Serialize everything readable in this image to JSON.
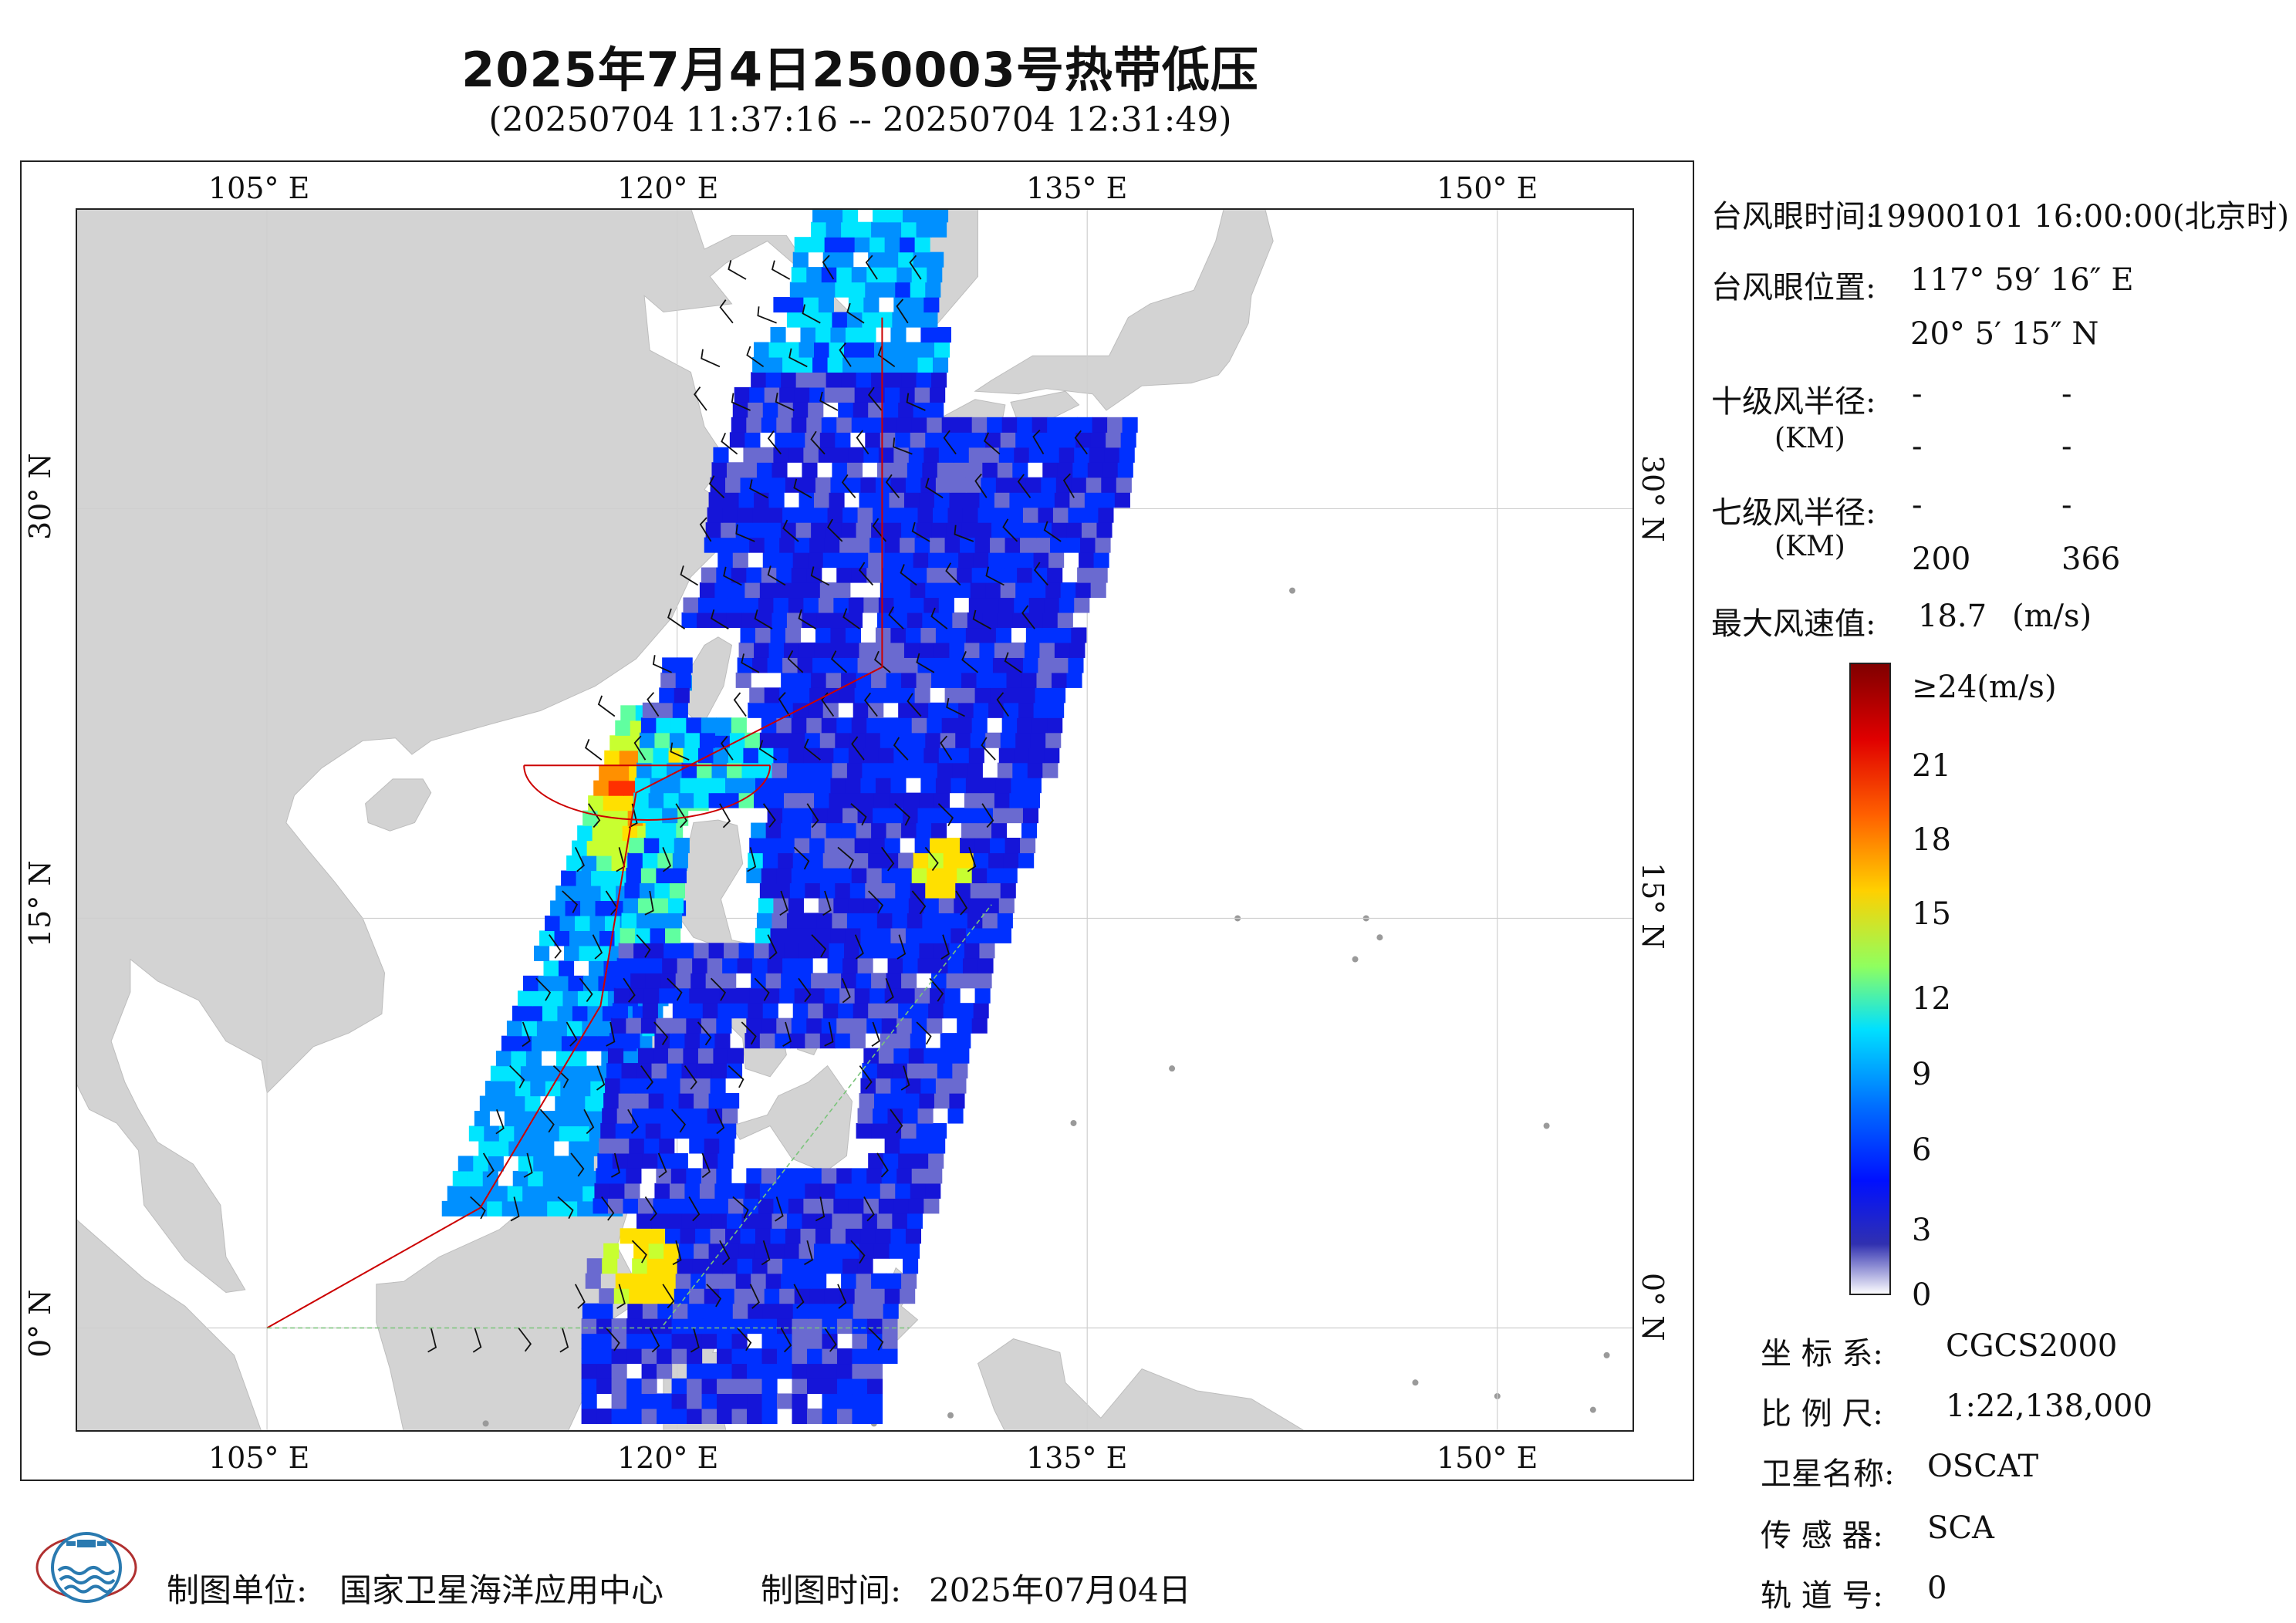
{
  "title": "2025年7月4日250003号热带低压",
  "subtitle": "(20250704 11:37:16 -- 20250704 12:31:49)",
  "map": {
    "lon_labels_top": [
      "105° E",
      "120° E",
      "135° E",
      "150° E"
    ],
    "lon_labels_bottom": [
      "105° E",
      "120° E",
      "135° E",
      "150° E"
    ],
    "lat_labels_left": [
      "30° N",
      "15° N",
      "0° N"
    ],
    "lat_labels_right": [
      "30° N",
      "15° N",
      "0° N"
    ],
    "lon_ticks": [
      105,
      120,
      135,
      150
    ],
    "lat_ticks": [
      30,
      15,
      0
    ],
    "lon_range": [
      98,
      155
    ],
    "lat_range": [
      -3.8,
      41
    ],
    "colors": {
      "land": "#d3d3d3",
      "ocean": "#ffffff",
      "track": "#cc0000",
      "grid": "#cfcfcf"
    }
  },
  "info": {
    "eye_time_label": "台风眼时间:",
    "eye_time_value": "19900101 16:00:00(北京时)",
    "eye_pos_label": "台风眼位置:",
    "eye_lon": "117° 59′ 16″ E",
    "eye_lat": "20° 5′ 15″ N",
    "r10_label": "十级风半径:",
    "r10_values": [
      "-",
      "-",
      "-",
      "-"
    ],
    "km_label": "(KM)",
    "r7_label": "七级风半径:",
    "r7_values": [
      "-",
      "-",
      "200",
      "366"
    ],
    "km_label_2": "(KM)",
    "max_wind_label": "最大风速值:",
    "max_wind_value": "18.7",
    "max_wind_unit": "(m/s)"
  },
  "colorbar": {
    "top_label": "≥24(m/s)",
    "ticks": [
      "21",
      "18",
      "15",
      "12",
      "9",
      "6",
      "3",
      "0"
    ],
    "stops": [
      "#7f0000",
      "#ff0000",
      "#ff8c00",
      "#ffff00",
      "#7fff7f",
      "#00e5ff",
      "#0080ff",
      "#0000ff",
      "#1a1aa0",
      "#ffffff"
    ]
  },
  "meta": {
    "crs_label": "坐 标 系:",
    "crs_value": "CGCS2000",
    "scale_label": "比 例 尺:",
    "scale_value": "1:22,138,000",
    "sat_label": "卫星名称:",
    "sat_value": "OSCAT",
    "sensor_label": "传 感 器:",
    "sensor_value": "SCA",
    "orbit_label": "轨 道 号:",
    "orbit_value": "0"
  },
  "footer": {
    "unit_label": "制图单位:",
    "unit_value": "国家卫星海洋应用中心",
    "time_label": "制图时间:",
    "time_value": "2025年07月04日"
  },
  "icons": {
    "logo": "nsoas-logo-icon"
  }
}
